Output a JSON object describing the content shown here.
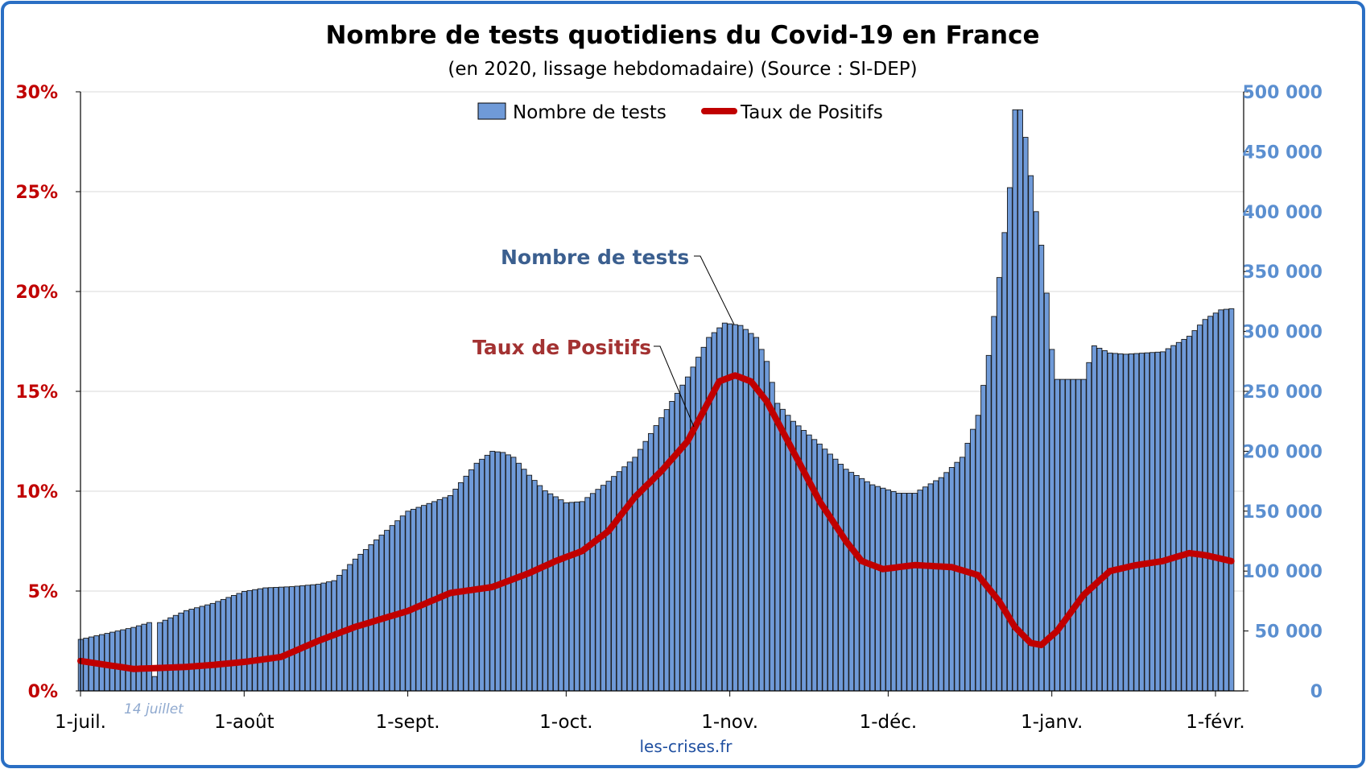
{
  "chart_data": {
    "type": "bar+line",
    "title": "Nombre de tests quotidiens du Covid-19 en France",
    "subtitle": "(en 2020, lissage hebdomadaire) (Source : SI-DEP)",
    "x_tick_labels": [
      "1-juil.",
      "1-août",
      "1-sept.",
      "1-oct.",
      "1-nov.",
      "1-déc.",
      "1-janv.",
      "1-févr."
    ],
    "x_tick_days": [
      0,
      31,
      62,
      92,
      123,
      153,
      184,
      215
    ],
    "y_left": {
      "min": 0,
      "max": 30,
      "step": 5,
      "tick_labels": [
        "0%",
        "5%",
        "10%",
        "15%",
        "20%",
        "25%",
        "30%"
      ]
    },
    "y_right": {
      "min": 0,
      "max": 500000,
      "step": 50000,
      "tick_labels": [
        "0",
        "50 000",
        "100 000",
        "150 000",
        "200 000",
        "250 000",
        "300 000",
        "350 000",
        "400 000",
        "450 000",
        "500 000"
      ]
    },
    "legend": {
      "placement": "top-center",
      "items": [
        "Nombre de tests",
        "Taux de Positifs"
      ]
    },
    "series": [
      {
        "name": "Nombre de tests",
        "kind": "bar",
        "axis": "right",
        "color": "#6f9ad8",
        "points": [
          [
            0,
            43000
          ],
          [
            5,
            48000
          ],
          [
            10,
            53000
          ],
          [
            13,
            57000
          ],
          [
            14,
            12000
          ],
          [
            15,
            57000
          ],
          [
            20,
            67000
          ],
          [
            25,
            73000
          ],
          [
            31,
            83000
          ],
          [
            35,
            86000
          ],
          [
            40,
            87000
          ],
          [
            45,
            89000
          ],
          [
            48,
            92000
          ],
          [
            52,
            110000
          ],
          [
            57,
            130000
          ],
          [
            62,
            150000
          ],
          [
            67,
            158000
          ],
          [
            70,
            163000
          ],
          [
            75,
            190000
          ],
          [
            78,
            200000
          ],
          [
            80,
            199000
          ],
          [
            82,
            195000
          ],
          [
            85,
            180000
          ],
          [
            88,
            167000
          ],
          [
            92,
            157000
          ],
          [
            95,
            158000
          ],
          [
            100,
            175000
          ],
          [
            105,
            195000
          ],
          [
            110,
            228000
          ],
          [
            115,
            262000
          ],
          [
            119,
            295000
          ],
          [
            122,
            307000
          ],
          [
            125,
            305000
          ],
          [
            128,
            295000
          ],
          [
            130,
            275000
          ],
          [
            132,
            240000
          ],
          [
            135,
            225000
          ],
          [
            140,
            206000
          ],
          [
            145,
            185000
          ],
          [
            150,
            172000
          ],
          [
            155,
            165000
          ],
          [
            158,
            165000
          ],
          [
            163,
            178000
          ],
          [
            167,
            195000
          ],
          [
            170,
            230000
          ],
          [
            172,
            280000
          ],
          [
            174,
            345000
          ],
          [
            176,
            420000
          ],
          [
            177,
            485000
          ],
          [
            178,
            485000
          ],
          [
            179,
            462000
          ],
          [
            180,
            430000
          ],
          [
            181,
            400000
          ],
          [
            182,
            372000
          ],
          [
            183,
            332000
          ],
          [
            184,
            285000
          ],
          [
            185,
            260000
          ],
          [
            187,
            260000
          ],
          [
            190,
            260000
          ],
          [
            192,
            288000
          ],
          [
            195,
            282000
          ],
          [
            198,
            281000
          ],
          [
            205,
            283000
          ],
          [
            210,
            296000
          ],
          [
            213,
            310000
          ],
          [
            216,
            318000
          ],
          [
            218,
            319000
          ]
        ]
      },
      {
        "name": "Taux de Positifs",
        "kind": "line",
        "axis": "left",
        "color": "#c00000",
        "points": [
          [
            0,
            1.5
          ],
          [
            5,
            1.3
          ],
          [
            10,
            1.1
          ],
          [
            15,
            1.15
          ],
          [
            20,
            1.2
          ],
          [
            25,
            1.3
          ],
          [
            31,
            1.45
          ],
          [
            38,
            1.7
          ],
          [
            45,
            2.5
          ],
          [
            52,
            3.2
          ],
          [
            62,
            4.0
          ],
          [
            70,
            4.9
          ],
          [
            78,
            5.2
          ],
          [
            85,
            5.9
          ],
          [
            90,
            6.5
          ],
          [
            95,
            7.0
          ],
          [
            100,
            8.0
          ],
          [
            105,
            9.7
          ],
          [
            110,
            11.0
          ],
          [
            115,
            12.5
          ],
          [
            118,
            14.0
          ],
          [
            121,
            15.5
          ],
          [
            124,
            15.8
          ],
          [
            127,
            15.5
          ],
          [
            130,
            14.5
          ],
          [
            135,
            12.0
          ],
          [
            140,
            9.5
          ],
          [
            145,
            7.5
          ],
          [
            148,
            6.5
          ],
          [
            152,
            6.1
          ],
          [
            158,
            6.3
          ],
          [
            165,
            6.2
          ],
          [
            170,
            5.8
          ],
          [
            174,
            4.5
          ],
          [
            177,
            3.2
          ],
          [
            180,
            2.4
          ],
          [
            182,
            2.3
          ],
          [
            185,
            3.0
          ],
          [
            190,
            4.8
          ],
          [
            195,
            6.0
          ],
          [
            200,
            6.3
          ],
          [
            205,
            6.5
          ],
          [
            210,
            6.9
          ],
          [
            213,
            6.8
          ],
          [
            218,
            6.5
          ]
        ]
      }
    ],
    "annotations": [
      {
        "text": "Nombre de tests",
        "x": 123,
        "y_right": 307000
      },
      {
        "text": "Taux de Positifs",
        "x": 114,
        "y_left": 13.3
      }
    ],
    "notes": [
      "14 juillet"
    ]
  },
  "footer": {
    "source": "les-crises.fr"
  }
}
